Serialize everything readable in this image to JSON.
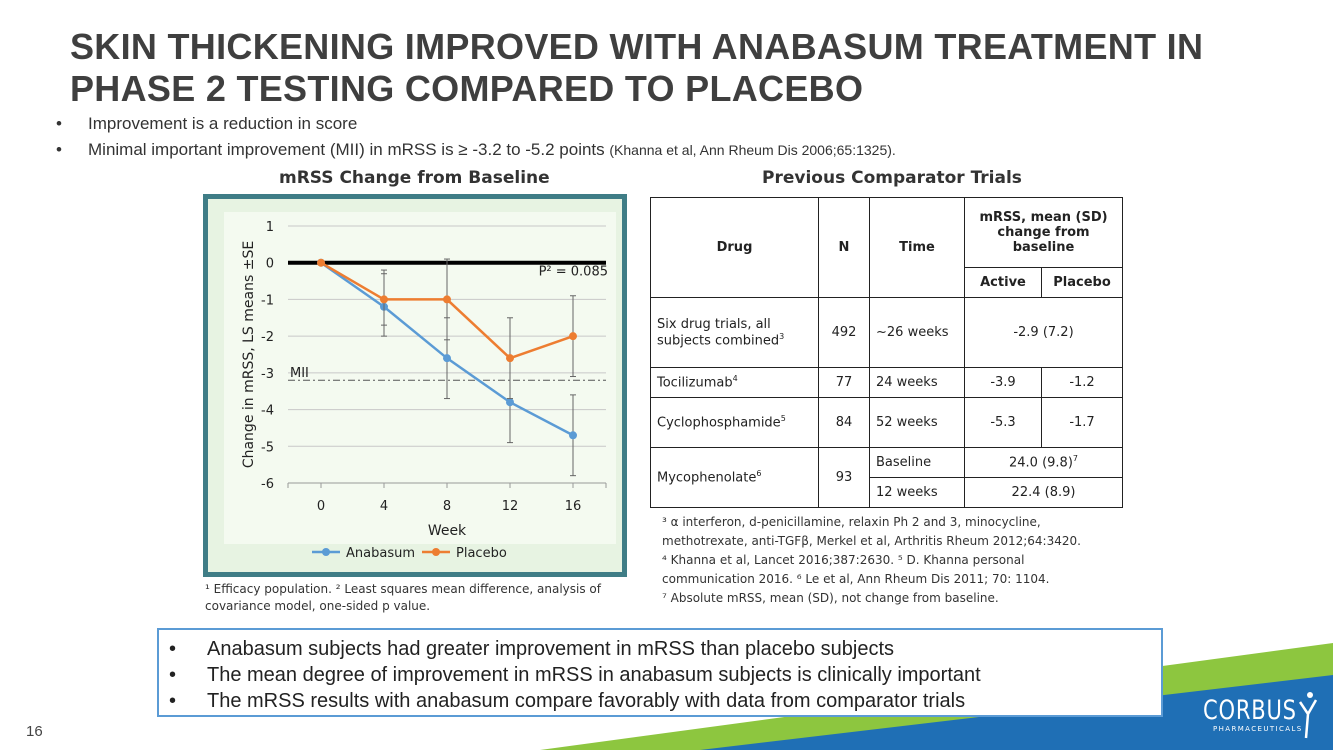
{
  "title": {
    "line1": "SKIN THICKENING IMPROVED WITH ANABASUM TREATMENT IN",
    "line2": "PHASE 2 TESTING COMPARED TO PLACEBO"
  },
  "bullets": [
    {
      "text": "Improvement is a reduction in score",
      "cite": ""
    },
    {
      "text": "Minimal important improvement (MII) in mRSS is ≥ -3.2 to -5.2 points",
      "cite": "(Khanna et al, Ann Rheum Dis 2006;65:1325)."
    }
  ],
  "chart_section_title": "mRSS Change from Baseline",
  "table_section_title": "Previous Comparator Trials",
  "chart_data": {
    "type": "line",
    "x": [
      0,
      4,
      8,
      12,
      16
    ],
    "series": [
      {
        "name": "Anabasum",
        "values": [
          0,
          -1.2,
          -2.6,
          -3.8,
          -4.7
        ],
        "err_low": [
          0,
          -2.0,
          -3.7,
          -4.9,
          -5.8
        ],
        "err_high": [
          0,
          -0.3,
          -1.5,
          -2.6,
          -3.6
        ],
        "color": "#5b9bd5"
      },
      {
        "name": "Placebo",
        "values": [
          0,
          -1.0,
          -1.0,
          -2.6,
          -2.0
        ],
        "err_low": [
          0,
          -1.7,
          -2.1,
          -3.7,
          -3.1
        ],
        "err_high": [
          0,
          -0.2,
          0.1,
          -1.5,
          -0.9
        ],
        "color": "#ed7d31"
      }
    ],
    "xlabel": "Week",
    "ylabel": "Change in mRSS, LS means ±SE",
    "ylim": [
      -6,
      1
    ],
    "yticks": [
      "1",
      "0",
      "-1",
      "-2",
      "-3",
      "-4",
      "-5",
      "-6"
    ],
    "xticks": [
      "0",
      "4",
      "8",
      "12",
      "16"
    ],
    "mii_label": "MII",
    "mii_value": -3.2,
    "p_label": "P² = 0.085",
    "legend_position": "bottom",
    "grid": true
  },
  "chart_footnote": "¹ Efficacy population. ² Least squares mean difference, analysis of covariance model, one-sided p value.",
  "table": {
    "headers": {
      "drug": "Drug",
      "n": "N",
      "time": "Time",
      "mrss": "mRSS, mean (SD) change from baseline",
      "active": "Active",
      "placebo": "Placebo"
    },
    "rows": [
      {
        "drug": "Six drug trials, all subjects combined",
        "sup": "3",
        "n": "492",
        "time": "~26 weeks",
        "combined": "-2.9 (7.2)"
      },
      {
        "drug": "Tocilizumab",
        "sup": "4",
        "n": "77",
        "time": "24 weeks",
        "active": "-3.9",
        "placebo": "-1.2"
      },
      {
        "drug": "Cyclophosphamide",
        "sup": "5",
        "n": "84",
        "time": "52 weeks",
        "active": "-5.3",
        "placebo": "-1.7"
      },
      {
        "drug": "Mycophenolate",
        "sup": "6",
        "n": "93",
        "time1": "Baseline",
        "value1": "24.0 (9.8)",
        "value1_sup": "7",
        "time2": "12 weeks",
        "value2": "22.4 (8.9)"
      }
    ]
  },
  "table_footnotes": [
    "³ α interferon, d-penicillamine, relaxin Ph 2 and 3, minocycline,",
    "methotrexate, anti-TGFβ, Merkel et al, Arthritis Rheum 2012;64:3420.",
    "⁴ Khanna et al,  Lancet 2016;387:2630. ⁵ D. Khanna personal",
    "communication 2016. ⁶ Le et al,  Ann Rheum Dis 2011; 70: 1104.",
    "⁷ Absolute mRSS, mean (SD), not change from baseline."
  ],
  "summary": [
    "Anabasum subjects had greater improvement in mRSS than placebo subjects",
    "The mean degree of improvement in mRSS in anabasum subjects is clinically important",
    "The mRSS results with anabasum compare favorably with data from comparator trials"
  ],
  "page_number": "16",
  "logo": {
    "name": "CORBUS",
    "sub": "PHARMACEUTICALS"
  },
  "colors": {
    "title": "#3f3f3f",
    "frame": "#3f7d86",
    "chart_bg": "#e7f3e2",
    "box_border": "#5b9bd5",
    "green": "#8dc63f",
    "blue": "#1f6fb5"
  }
}
